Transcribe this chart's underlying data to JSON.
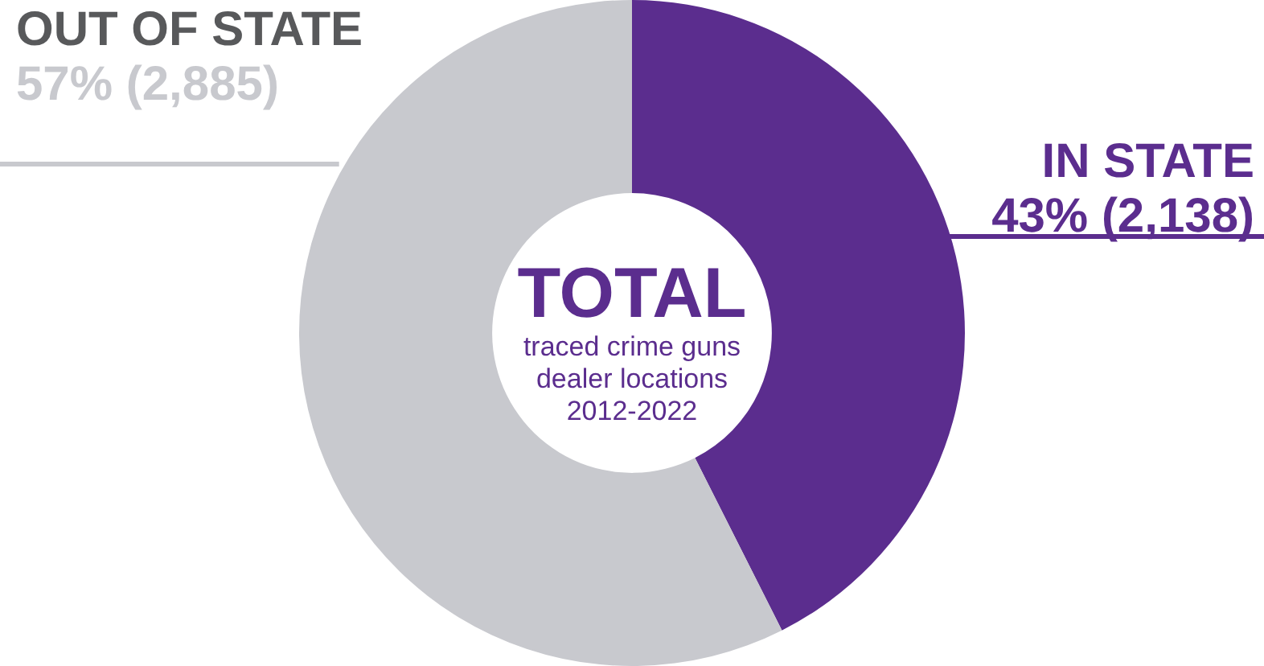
{
  "chart_data": {
    "type": "donut",
    "title": "TOTAL",
    "categories": [
      "IN STATE",
      "OUT OF STATE"
    ],
    "values": [
      2138,
      2885
    ],
    "colors": [
      "#5b2d8e",
      "#c8c9ce"
    ],
    "value_labels": [
      "43% (2,138)",
      "57% (2,885)"
    ],
    "annotations": [
      "traced crime guns\ndealer locations\n2012-2022"
    ],
    "legend": false
  }
}
